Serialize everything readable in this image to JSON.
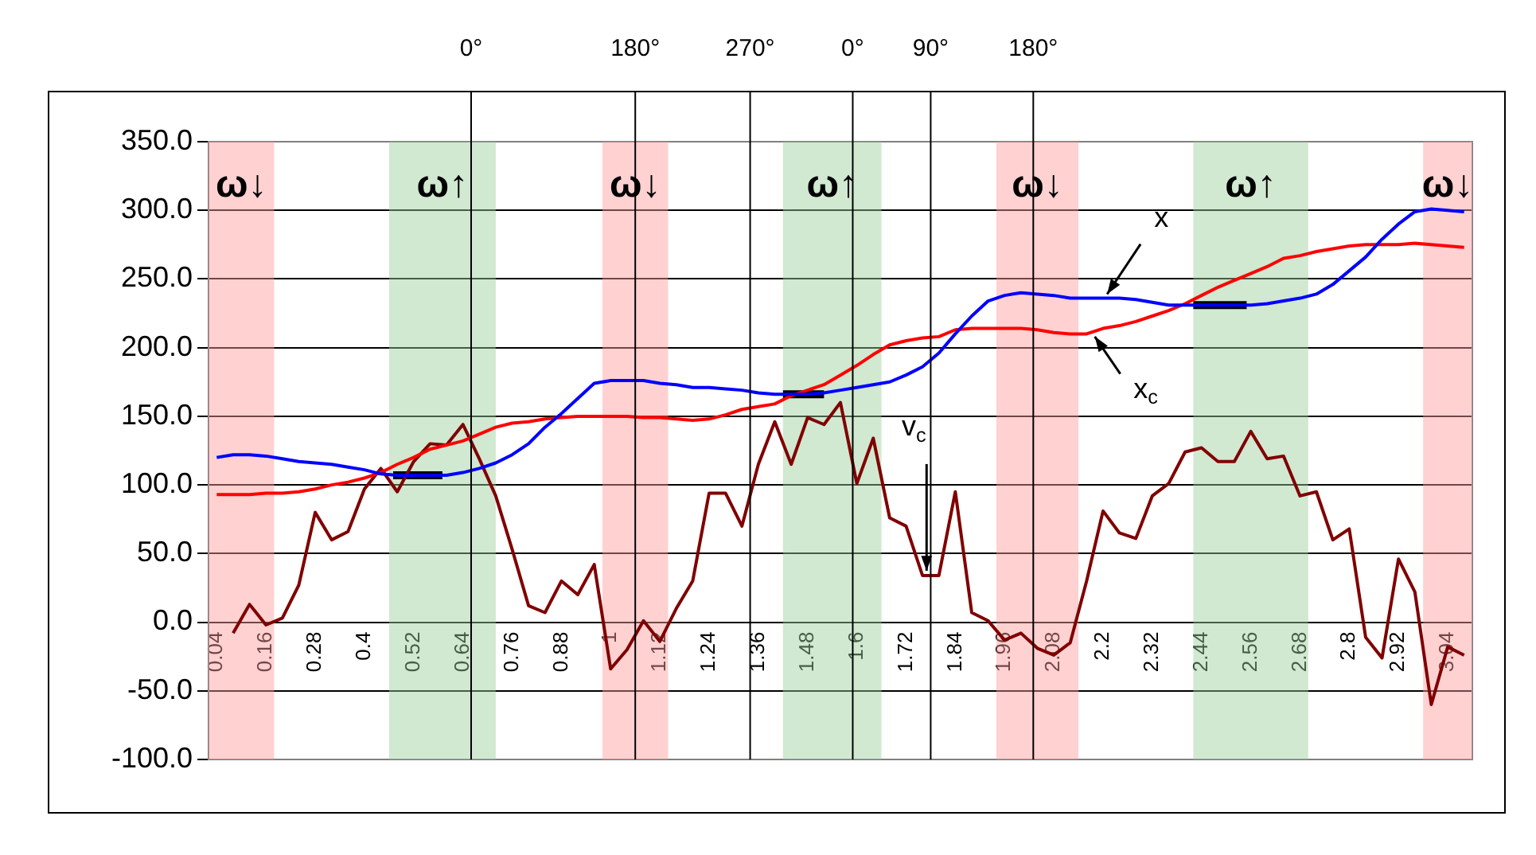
{
  "chart_data": {
    "type": "line",
    "x": [
      0.04,
      0.08,
      0.12,
      0.16,
      0.2,
      0.24,
      0.28,
      0.32,
      0.36,
      0.4,
      0.44,
      0.48,
      0.52,
      0.56,
      0.6,
      0.64,
      0.68,
      0.72,
      0.76,
      0.8,
      0.84,
      0.88,
      0.92,
      0.96,
      1,
      1.04,
      1.08,
      1.12,
      1.16,
      1.2,
      1.24,
      1.28,
      1.32,
      1.36,
      1.4,
      1.44,
      1.48,
      1.52,
      1.56,
      1.6,
      1.64,
      1.68,
      1.72,
      1.76,
      1.8,
      1.84,
      1.88,
      1.92,
      1.96,
      2,
      2.04,
      2.08,
      2.12,
      2.16,
      2.2,
      2.24,
      2.28,
      2.32,
      2.36,
      2.4,
      2.44,
      2.48,
      2.52,
      2.56,
      2.6,
      2.64,
      2.68,
      2.72,
      2.76,
      2.8,
      2.84,
      2.88,
      2.92,
      2.96,
      3,
      3.04,
      3.08
    ],
    "series": [
      {
        "color": "#0000ff",
        "values": [
          120,
          122,
          122,
          121,
          119,
          117,
          116,
          115,
          113,
          111,
          108,
          107,
          107,
          107,
          107,
          109,
          112,
          116,
          122,
          130,
          142,
          152,
          163,
          174,
          176,
          176,
          176,
          174,
          173,
          171,
          171,
          170,
          169,
          167,
          166,
          166,
          166,
          167,
          169,
          171,
          173,
          175,
          180,
          186,
          196,
          210,
          223,
          234,
          238,
          240,
          239,
          238,
          236,
          236,
          236,
          236,
          235,
          233,
          231,
          231,
          231,
          231,
          231,
          231,
          232,
          234,
          236,
          239,
          246,
          256,
          266,
          279,
          290,
          299,
          301,
          300,
          299
        ]
      },
      {
        "color": "#ff0000",
        "values": [
          93,
          93,
          93,
          94,
          94,
          95,
          97,
          100,
          102,
          105,
          109,
          115,
          120,
          126,
          129,
          132,
          137,
          142,
          145,
          146,
          148,
          149,
          150,
          150,
          150,
          150,
          149,
          149,
          148,
          147,
          148,
          151,
          155,
          157,
          159,
          165,
          169,
          173,
          180,
          187,
          195,
          202,
          205,
          207,
          208,
          213,
          214,
          214,
          214,
          214,
          213,
          211,
          210,
          210,
          214,
          216,
          219,
          223,
          227,
          232,
          238,
          244,
          249,
          254,
          259,
          265,
          267,
          270,
          272,
          274,
          275,
          275,
          275,
          276,
          275,
          274,
          273
        ]
      },
      {
        "color": "#800000",
        "values": [
          null,
          -8,
          13,
          -2,
          3,
          27,
          80,
          60,
          66,
          97,
          112,
          95,
          117,
          130,
          129,
          144,
          119,
          92,
          53,
          12,
          7,
          30,
          20,
          42,
          -34,
          -20,
          1,
          -14,
          10,
          30,
          94,
          94,
          70,
          115,
          146,
          115,
          149,
          144,
          160,
          101,
          134,
          76,
          70,
          34,
          34,
          95,
          7,
          1,
          -13,
          -8,
          -19,
          -24,
          -15,
          30,
          81,
          65,
          61,
          92,
          101,
          124,
          127,
          117,
          117,
          139,
          119,
          121,
          92,
          95,
          60,
          68,
          -11,
          -26,
          46,
          22,
          -60,
          -18,
          -24
        ]
      },
      {
        "type": "line",
        "color": "#000000",
        "x": [
          0.47,
          0.59
        ],
        "values": [
          107,
          107
        ]
      },
      {
        "type": "line",
        "color": "#000000",
        "x": [
          1.42,
          1.52
        ],
        "values": [
          166,
          166
        ]
      },
      {
        "type": "line",
        "color": "#000000",
        "x": [
          2.42,
          2.55
        ],
        "values": [
          231,
          231
        ]
      }
    ],
    "xlim": [
      0.02,
      3.1
    ],
    "xticks": [
      0.04,
      0.16,
      0.28,
      0.4,
      0.52,
      0.64,
      0.76,
      0.88,
      1,
      1.12,
      1.24,
      1.36,
      1.48,
      1.6,
      1.72,
      1.84,
      1.96,
      2.08,
      2.2,
      2.32,
      2.44,
      2.56,
      2.68,
      2.8,
      2.92,
      3.04
    ],
    "ylim": [
      -100,
      350
    ],
    "yticks": [
      {
        "value": 350,
        "label": "350.0"
      },
      {
        "value": 300,
        "label": "300.0"
      },
      {
        "value": 250,
        "label": "250.0"
      },
      {
        "value": 200,
        "label": "200.0"
      },
      {
        "value": 150,
        "label": "150.0"
      },
      {
        "value": 100,
        "label": "100.0"
      },
      {
        "value": 50,
        "label": "50.0"
      },
      {
        "value": 0,
        "label": "0.0"
      },
      {
        "value": -50,
        "label": "-50.0"
      },
      {
        "value": -100,
        "label": "-100.0"
      }
    ],
    "grid": "y",
    "legend": false,
    "marker": "none",
    "line_style": "solid",
    "bands": [
      {
        "axis": "x",
        "from": 0.02,
        "to": 0.18,
        "label": "ω↓",
        "color": "#ff9999"
      },
      {
        "axis": "x",
        "from": 0.46,
        "to": 0.72,
        "label": "ω↑",
        "color": "#99cc99"
      },
      {
        "axis": "x",
        "from": 0.98,
        "to": 1.14,
        "label": "ω↓",
        "color": "#ff9999"
      },
      {
        "axis": "x",
        "from": 1.42,
        "to": 1.66,
        "label": "ω↑",
        "color": "#99cc99"
      },
      {
        "axis": "x",
        "from": 1.94,
        "to": 2.14,
        "label": "ω↓",
        "color": "#ff9999"
      },
      {
        "axis": "x",
        "from": 2.42,
        "to": 2.7,
        "label": "ω↑",
        "color": "#99cc99"
      },
      {
        "axis": "x",
        "from": 2.98,
        "to": 3.1,
        "label": "ω↓",
        "color": "#ff9999"
      }
    ],
    "ref_lines": [
      {
        "axis": "x",
        "value": 0.66,
        "color": "#000000"
      },
      {
        "axis": "x",
        "value": 1.06,
        "color": "#000000"
      },
      {
        "axis": "x",
        "value": 1.34,
        "color": "#000000"
      },
      {
        "axis": "x",
        "value": 1.59,
        "color": "#000000"
      },
      {
        "axis": "x",
        "value": 1.78,
        "color": "#000000"
      },
      {
        "axis": "x",
        "value": 2.03,
        "color": "#000000"
      }
    ],
    "annotations": [
      {
        "text": "x",
        "x": 2.21,
        "y": 236
      },
      {
        "text": "x$_{c}$",
        "x": 2.18,
        "y": 211
      },
      {
        "text": "v$_{c}$",
        "x": 1.77,
        "y": 34
      },
      "0°",
      "180°",
      "270°",
      "0°",
      "90°",
      "180°"
    ]
  }
}
